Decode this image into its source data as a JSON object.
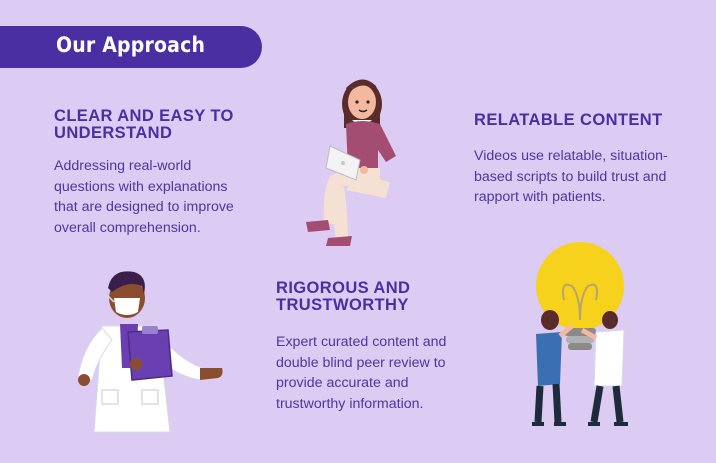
{
  "banner": {
    "title": "Our Approach"
  },
  "sections": [
    {
      "heading": "CLEAR AND EASY TO UNDERSTAND",
      "text": "Addressing real-world questions with explanations that are designed to improve overall comprehension."
    },
    {
      "heading": "RELATABLE CONTENT",
      "text": "Videos use relatable, situation-based scripts to build trust and rapport with patients."
    },
    {
      "heading": "RIGOROUS AND TRUSTWORTHY",
      "text": "Expert curated content and double blind peer review to provide accurate and trustworthy information."
    }
  ],
  "colors": {
    "background": "#dccbf2",
    "accent": "#4a2fa3"
  },
  "illustrations": [
    "woman-with-laptop",
    "doctor-with-clipboard",
    "people-lifting-lightbulb"
  ]
}
